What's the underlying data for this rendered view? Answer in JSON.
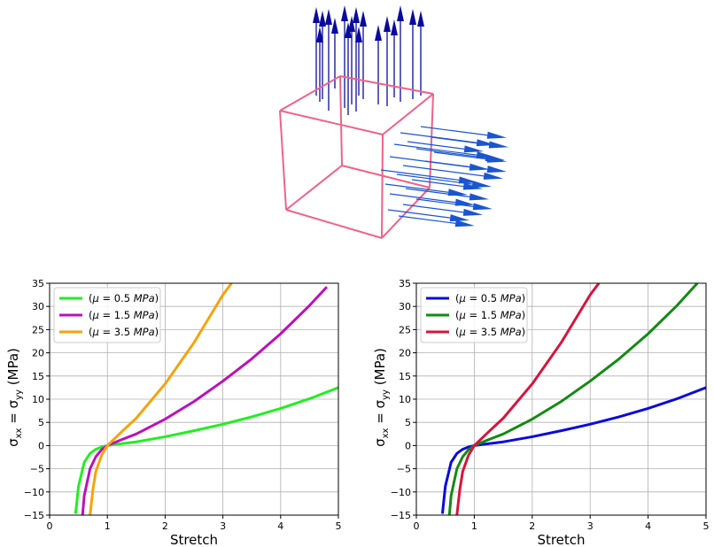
{
  "chart_data": [
    {
      "type": "line",
      "xlabel": "Stretch",
      "ylabel_main": "σ",
      "ylabel_sub1": "xx",
      "ylabel_eq": " = σ",
      "ylabel_sub2": "yy",
      "ylabel_unit": " (MPa)",
      "xlim": [
        0,
        5
      ],
      "ylim": [
        -15,
        35
      ],
      "xticks": [
        0,
        1,
        2,
        3,
        4,
        5
      ],
      "yticks": [
        -15,
        -10,
        -5,
        0,
        5,
        10,
        15,
        20,
        25,
        30,
        35
      ],
      "xtick_labels": [
        "0",
        "1",
        "2",
        "3",
        "4",
        "5"
      ],
      "ytick_labels": [
        "−15",
        "−10",
        "−5",
        "0",
        "5",
        "10",
        "15",
        "20",
        "25",
        "30",
        "35"
      ],
      "grid": true,
      "legend_position": "top-left",
      "series": [
        {
          "name_open": "(",
          "name_mu": "μ",
          "name_value": " = 0.5 ",
          "name_unit": "MPa",
          "name_close": ")",
          "color": "#22ee22",
          "mu": 0.5,
          "x": [
            0.45,
            0.5,
            0.6,
            0.7,
            0.8,
            0.9,
            1.0,
            1.25,
            1.5,
            2.0,
            2.5,
            3.0,
            3.5,
            4.0,
            4.5,
            5.0
          ],
          "y": [
            -14.7,
            -8.8,
            -3.6,
            -1.7,
            -0.8,
            -0.3,
            0.0,
            0.4,
            0.8,
            1.9,
            3.2,
            4.6,
            6.2,
            8.0,
            10.1,
            12.5
          ]
        },
        {
          "name_open": "(",
          "name_mu": "μ",
          "name_value": " = 1.5 ",
          "name_unit": "MPa",
          "name_close": ")",
          "color": "#bb11bb",
          "mu": 1.5,
          "x": [
            0.57,
            0.6,
            0.7,
            0.8,
            0.9,
            1.0,
            1.25,
            1.5,
            2.0,
            2.5,
            3.0,
            3.5,
            4.0,
            4.5,
            4.8
          ],
          "y": [
            -15.0,
            -10.8,
            -5.0,
            -2.4,
            -0.9,
            0.0,
            1.3,
            2.5,
            5.7,
            9.5,
            13.9,
            18.7,
            24.1,
            30.2,
            34.2
          ]
        },
        {
          "name_open": "(",
          "name_mu": "μ",
          "name_value": " = 3.5 ",
          "name_unit": "MPa",
          "name_close": ")",
          "color": "#f5a30b",
          "mu": 3.5,
          "x": [
            0.7,
            0.75,
            0.8,
            0.9,
            1.0,
            1.25,
            1.5,
            2.0,
            2.5,
            3.0,
            3.15
          ],
          "y": [
            -15.0,
            -9.5,
            -5.6,
            -2.1,
            0.0,
            3.0,
            5.9,
            13.3,
            22.2,
            32.5,
            35.0
          ]
        }
      ]
    },
    {
      "type": "line",
      "xlabel": "Stretch",
      "ylabel_main": "σ",
      "ylabel_sub1": "xx",
      "ylabel_eq": " = σ",
      "ylabel_sub2": "yy",
      "ylabel_unit": " (MPa)",
      "xlim": [
        0,
        5
      ],
      "ylim": [
        -15,
        35
      ],
      "xticks": [
        0,
        1,
        2,
        3,
        4,
        5
      ],
      "yticks": [
        -15,
        -10,
        -5,
        0,
        5,
        10,
        15,
        20,
        25,
        30,
        35
      ],
      "xtick_labels": [
        "0",
        "1",
        "2",
        "3",
        "4",
        "5"
      ],
      "ytick_labels": [
        "−15",
        "−10",
        "−5",
        "0",
        "5",
        "10",
        "15",
        "20",
        "25",
        "30",
        "35"
      ],
      "grid": true,
      "legend_position": "top-left",
      "series": [
        {
          "name_open": "(",
          "name_mu": "μ",
          "name_value": " = 0.5 ",
          "name_unit": "MPa",
          "name_close": ")",
          "color": "#0a0adc",
          "mu": 0.5,
          "x": [
            0.45,
            0.5,
            0.6,
            0.7,
            0.8,
            0.9,
            1.0,
            1.25,
            1.5,
            2.0,
            2.5,
            3.0,
            3.5,
            4.0,
            4.5,
            5.0
          ],
          "y": [
            -14.7,
            -8.8,
            -3.6,
            -1.7,
            -0.8,
            -0.3,
            0.0,
            0.4,
            0.8,
            1.9,
            3.2,
            4.6,
            6.2,
            8.0,
            10.1,
            12.5
          ]
        },
        {
          "name_open": "(",
          "name_mu": "μ",
          "name_value": " = 1.5 ",
          "name_unit": "MPa",
          "name_close": ")",
          "color": "#138a13",
          "mu": 1.5,
          "x": [
            0.57,
            0.6,
            0.7,
            0.8,
            0.9,
            1.0,
            1.25,
            1.5,
            2.0,
            2.5,
            3.0,
            3.5,
            4.0,
            4.5,
            4.85
          ],
          "y": [
            -15.0,
            -10.8,
            -5.0,
            -2.4,
            -0.9,
            0.0,
            1.3,
            2.5,
            5.7,
            9.5,
            13.9,
            18.7,
            24.1,
            30.2,
            35.0
          ]
        },
        {
          "name_open": "(",
          "name_mu": "μ",
          "name_value": " = 3.5 ",
          "name_unit": "MPa",
          "name_close": ")",
          "color": "#d8143c",
          "mu": 3.5,
          "x": [
            0.7,
            0.75,
            0.8,
            0.9,
            1.0,
            1.25,
            1.5,
            2.0,
            2.5,
            3.0,
            3.15
          ],
          "y": [
            -15.0,
            -9.5,
            -5.6,
            -2.1,
            0.0,
            3.0,
            5.9,
            13.3,
            22.2,
            32.5,
            35.0
          ]
        }
      ]
    }
  ],
  "illustration": {
    "cube_color": "#f06288",
    "vertical_arrow_color": "#0a0a9c",
    "horizontal_arrow_color": "#1a55d0",
    "vertical_arrow_count": 17,
    "horizontal_arrow_count": 20
  }
}
